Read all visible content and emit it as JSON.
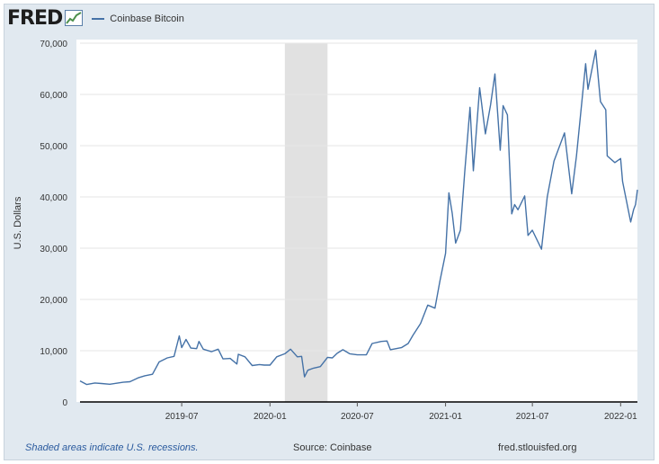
{
  "header": {
    "logo_text": "FRED",
    "logo_icon": "fred-graph-icon"
  },
  "footer": {
    "recession_note": "Shaded areas indicate U.S. recessions.",
    "source": "Source: Coinbase",
    "site": "fred.stlouisfed.org"
  },
  "colors": {
    "series": "#4572a7",
    "recession": "#e1e1e1",
    "grid": "#e6e6e6",
    "frame": "#e1e9f0"
  },
  "chart_data": {
    "type": "line",
    "title": "",
    "legend": [
      "Coinbase Bitcoin"
    ],
    "legend_position": "top-left",
    "ylabel": "U.S. Dollars",
    "xlabel": "",
    "ylim": [
      0,
      70000
    ],
    "yticks": [
      0,
      10000,
      20000,
      30000,
      40000,
      50000,
      60000,
      70000
    ],
    "ytick_labels": [
      "0",
      "10,000",
      "20,000",
      "30,000",
      "40,000",
      "50,000",
      "60,000",
      "70,000"
    ],
    "xlim": [
      "2018-12-01",
      "2022-02-05"
    ],
    "xticks": [
      "2019-07-01",
      "2020-01-01",
      "2020-07-01",
      "2021-01-01",
      "2021-07-01",
      "2022-01-01"
    ],
    "xtick_labels": [
      "2019-07",
      "2020-01",
      "2020-07",
      "2021-01",
      "2021-07",
      "2022-01"
    ],
    "recessions": [
      {
        "start": "2020-02-01",
        "end": "2020-04-30"
      }
    ],
    "grid": true,
    "series": [
      {
        "name": "Coinbase Bitcoin",
        "color": "#4572a7",
        "points": [
          [
            "2018-12-01",
            4100
          ],
          [
            "2018-12-15",
            3400
          ],
          [
            "2019-01-01",
            3700
          ],
          [
            "2019-01-15",
            3600
          ],
          [
            "2019-02-01",
            3450
          ],
          [
            "2019-02-15",
            3650
          ],
          [
            "2019-03-01",
            3850
          ],
          [
            "2019-03-15",
            3950
          ],
          [
            "2019-04-01",
            4700
          ],
          [
            "2019-04-15",
            5100
          ],
          [
            "2019-05-01",
            5400
          ],
          [
            "2019-05-15",
            7800
          ],
          [
            "2019-06-01",
            8600
          ],
          [
            "2019-06-15",
            8900
          ],
          [
            "2019-06-26",
            12900
          ],
          [
            "2019-07-01",
            10600
          ],
          [
            "2019-07-10",
            12200
          ],
          [
            "2019-07-20",
            10500
          ],
          [
            "2019-08-01",
            10400
          ],
          [
            "2019-08-06",
            11800
          ],
          [
            "2019-08-15",
            10300
          ],
          [
            "2019-09-01",
            9800
          ],
          [
            "2019-09-15",
            10300
          ],
          [
            "2019-09-25",
            8400
          ],
          [
            "2019-10-10",
            8500
          ],
          [
            "2019-10-24",
            7400
          ],
          [
            "2019-10-27",
            9300
          ],
          [
            "2019-11-10",
            8800
          ],
          [
            "2019-11-25",
            7100
          ],
          [
            "2019-12-10",
            7300
          ],
          [
            "2019-12-20",
            7200
          ],
          [
            "2020-01-01",
            7200
          ],
          [
            "2020-01-15",
            8800
          ],
          [
            "2020-02-01",
            9400
          ],
          [
            "2020-02-13",
            10300
          ],
          [
            "2020-02-27",
            8800
          ],
          [
            "2020-03-07",
            8900
          ],
          [
            "2020-03-13",
            4900
          ],
          [
            "2020-03-20",
            6200
          ],
          [
            "2020-04-01",
            6600
          ],
          [
            "2020-04-15",
            6900
          ],
          [
            "2020-04-30",
            8700
          ],
          [
            "2020-05-10",
            8600
          ],
          [
            "2020-05-20",
            9500
          ],
          [
            "2020-06-01",
            10200
          ],
          [
            "2020-06-15",
            9400
          ],
          [
            "2020-07-01",
            9200
          ],
          [
            "2020-07-20",
            9200
          ],
          [
            "2020-08-01",
            11400
          ],
          [
            "2020-08-20",
            11800
          ],
          [
            "2020-09-01",
            11900
          ],
          [
            "2020-09-08",
            10200
          ],
          [
            "2020-10-01",
            10600
          ],
          [
            "2020-10-15",
            11400
          ],
          [
            "2020-10-25",
            13000
          ],
          [
            "2020-11-10",
            15300
          ],
          [
            "2020-11-25",
            18900
          ],
          [
            "2020-12-10",
            18300
          ],
          [
            "2020-12-20",
            23500
          ],
          [
            "2021-01-01",
            29000
          ],
          [
            "2021-01-08",
            40800
          ],
          [
            "2021-01-15",
            36800
          ],
          [
            "2021-01-22",
            31000
          ],
          [
            "2021-02-01",
            33500
          ],
          [
            "2021-02-10",
            44800
          ],
          [
            "2021-02-21",
            57500
          ],
          [
            "2021-02-28",
            45100
          ],
          [
            "2021-03-13",
            61300
          ],
          [
            "2021-03-25",
            52300
          ],
          [
            "2021-04-05",
            58000
          ],
          [
            "2021-04-14",
            64000
          ],
          [
            "2021-04-25",
            49100
          ],
          [
            "2021-05-01",
            57800
          ],
          [
            "2021-05-10",
            56000
          ],
          [
            "2021-05-19",
            36700
          ],
          [
            "2021-05-25",
            38500
          ],
          [
            "2021-06-01",
            37500
          ],
          [
            "2021-06-15",
            40200
          ],
          [
            "2021-06-22",
            32500
          ],
          [
            "2021-07-01",
            33500
          ],
          [
            "2021-07-20",
            29800
          ],
          [
            "2021-08-01",
            40000
          ],
          [
            "2021-08-15",
            47000
          ],
          [
            "2021-09-06",
            52500
          ],
          [
            "2021-09-21",
            40600
          ],
          [
            "2021-10-01",
            48000
          ],
          [
            "2021-10-20",
            66000
          ],
          [
            "2021-10-25",
            61000
          ],
          [
            "2021-11-10",
            68600
          ],
          [
            "2021-11-20",
            58600
          ],
          [
            "2021-12-01",
            57000
          ],
          [
            "2021-12-04",
            48000
          ],
          [
            "2021-12-20",
            46700
          ],
          [
            "2022-01-01",
            47500
          ],
          [
            "2022-01-05",
            43000
          ],
          [
            "2022-01-22",
            35100
          ],
          [
            "2022-01-28",
            37500
          ],
          [
            "2022-02-01",
            38500
          ],
          [
            "2022-02-05",
            41400
          ]
        ]
      }
    ]
  }
}
